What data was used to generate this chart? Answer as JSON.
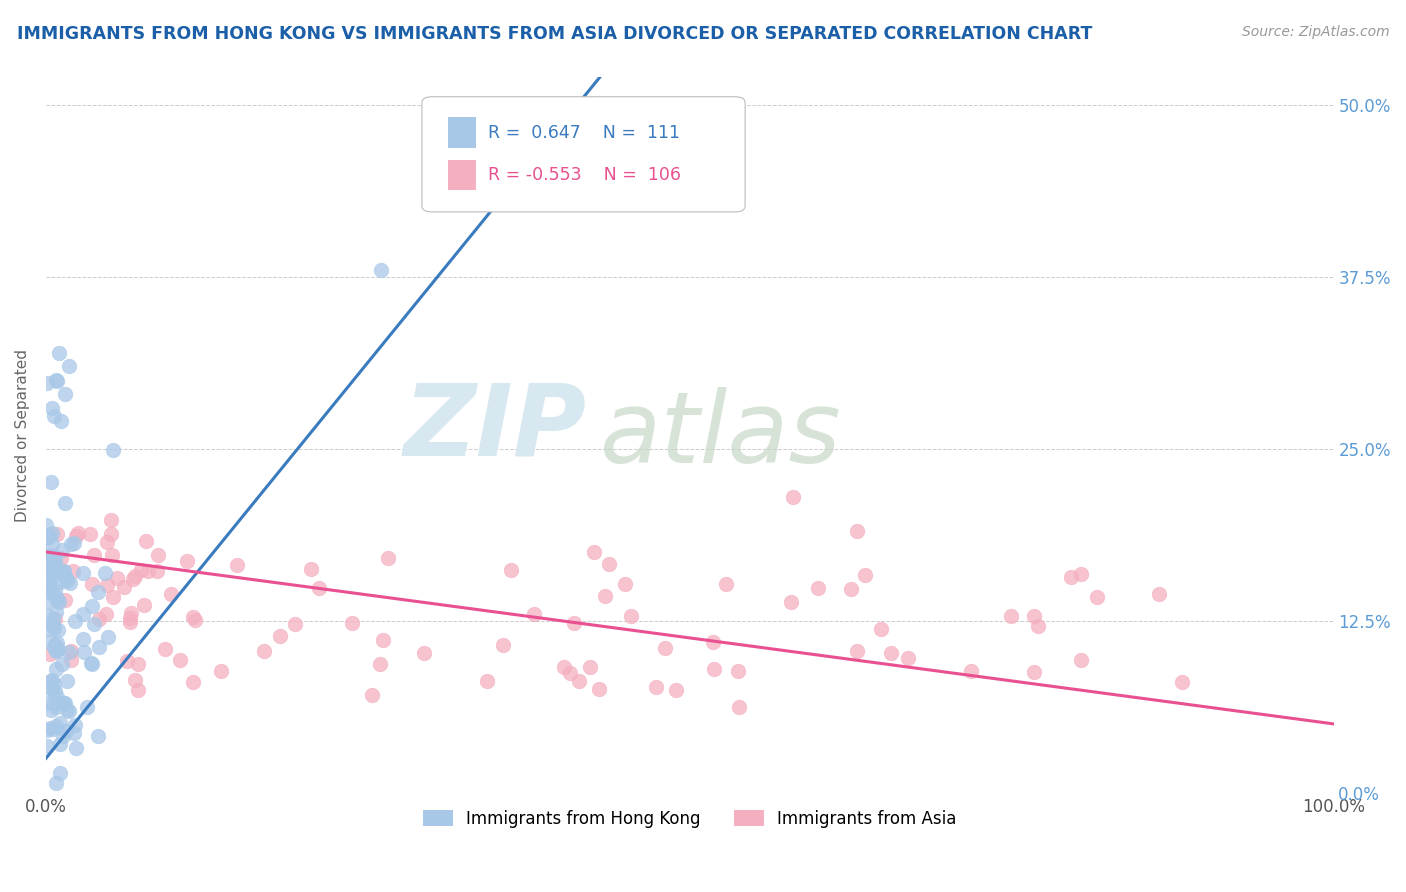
{
  "title": "IMMIGRANTS FROM HONG KONG VS IMMIGRANTS FROM ASIA DIVORCED OR SEPARATED CORRELATION CHART",
  "source": "Source: ZipAtlas.com",
  "ylabel": "Divorced or Separated",
  "xticklabels": [
    "0.0%",
    "100.0%"
  ],
  "xlim": [
    0.0,
    1.0
  ],
  "ylim": [
    0.0,
    0.52
  ],
  "legend1_label": "Immigrants from Hong Kong",
  "legend2_label": "Immigrants from Asia",
  "r1": 0.647,
  "n1": 111,
  "r2": -0.553,
  "n2": 106,
  "blue_color": "#a8c8e8",
  "pink_color": "#f4afc0",
  "blue_line_color": "#3a7bbf",
  "pink_line_color": "#e85090",
  "background_color": "#ffffff",
  "grid_color": "#cccccc",
  "title_color": "#1a5fa8",
  "source_color": "#999999",
  "ylabel_color": "#666666",
  "right_tick_color": "#5b9bd5"
}
